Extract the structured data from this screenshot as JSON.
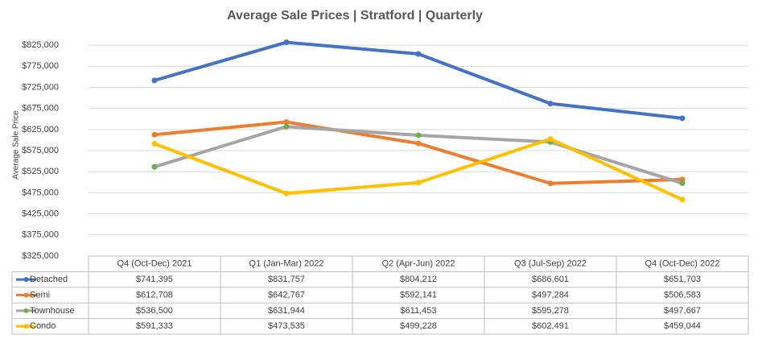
{
  "chart_data": {
    "type": "line",
    "title": "Average Sale Prices | Stratford |  Quarterly",
    "y_label": "Average Sale Price",
    "categories": [
      "Q4 (Oct-Dec) 2021",
      "Q1 (Jan-Mar) 2022",
      "Q2 (Apr-Jun) 2022",
      "Q3 (Jul-Sep) 2022",
      "Q4 (Oct-Dec) 2022"
    ],
    "series": [
      {
        "name": "Detached",
        "color": "#4472c4",
        "marker_color": "#4472c4",
        "values": [
          741395,
          831757,
          804212,
          686601,
          651703
        ],
        "value_labels": [
          "$741,395",
          "$831,757",
          "$804,212",
          "$686,601",
          "$651,703"
        ]
      },
      {
        "name": "Semi",
        "color": "#ed7d31",
        "marker_color": "#ed7d31",
        "values": [
          612708,
          642767,
          592141,
          497284,
          506583
        ],
        "value_labels": [
          "$612,708",
          "$642,767",
          "$592,141",
          "$497,284",
          "$506,583"
        ]
      },
      {
        "name": "Townhouse",
        "color": "#a5a5a5",
        "marker_color": "#70ad47",
        "values": [
          536500,
          631944,
          611453,
          595278,
          497667
        ],
        "value_labels": [
          "$536,500",
          "$631,944",
          "$611,453",
          "$595,278",
          "$497,667"
        ]
      },
      {
        "name": "Condo",
        "color": "#ffc000",
        "marker_color": "#ffc000",
        "values": [
          591333,
          473535,
          499228,
          602491,
          459044
        ],
        "value_labels": [
          "$591,333",
          "$473,535",
          "$499,228",
          "$602,491",
          "$459,044"
        ]
      }
    ],
    "ylim": [
      325000,
      850000
    ],
    "yticks": [
      {
        "value": 325000,
        "label": "$325,000"
      },
      {
        "value": 375000,
        "label": "$375,000"
      },
      {
        "value": 425000,
        "label": "$425,000"
      },
      {
        "value": 475000,
        "label": "$475,000"
      },
      {
        "value": 525000,
        "label": "$525,000"
      },
      {
        "value": 575000,
        "label": "$575,000"
      },
      {
        "value": 625000,
        "label": "$625,000"
      },
      {
        "value": 675000,
        "label": "$675,000"
      },
      {
        "value": 725000,
        "label": "$725,000"
      },
      {
        "value": 775000,
        "label": "$775,000"
      },
      {
        "value": 825000,
        "label": "$825,000"
      }
    ],
    "grid": true
  }
}
